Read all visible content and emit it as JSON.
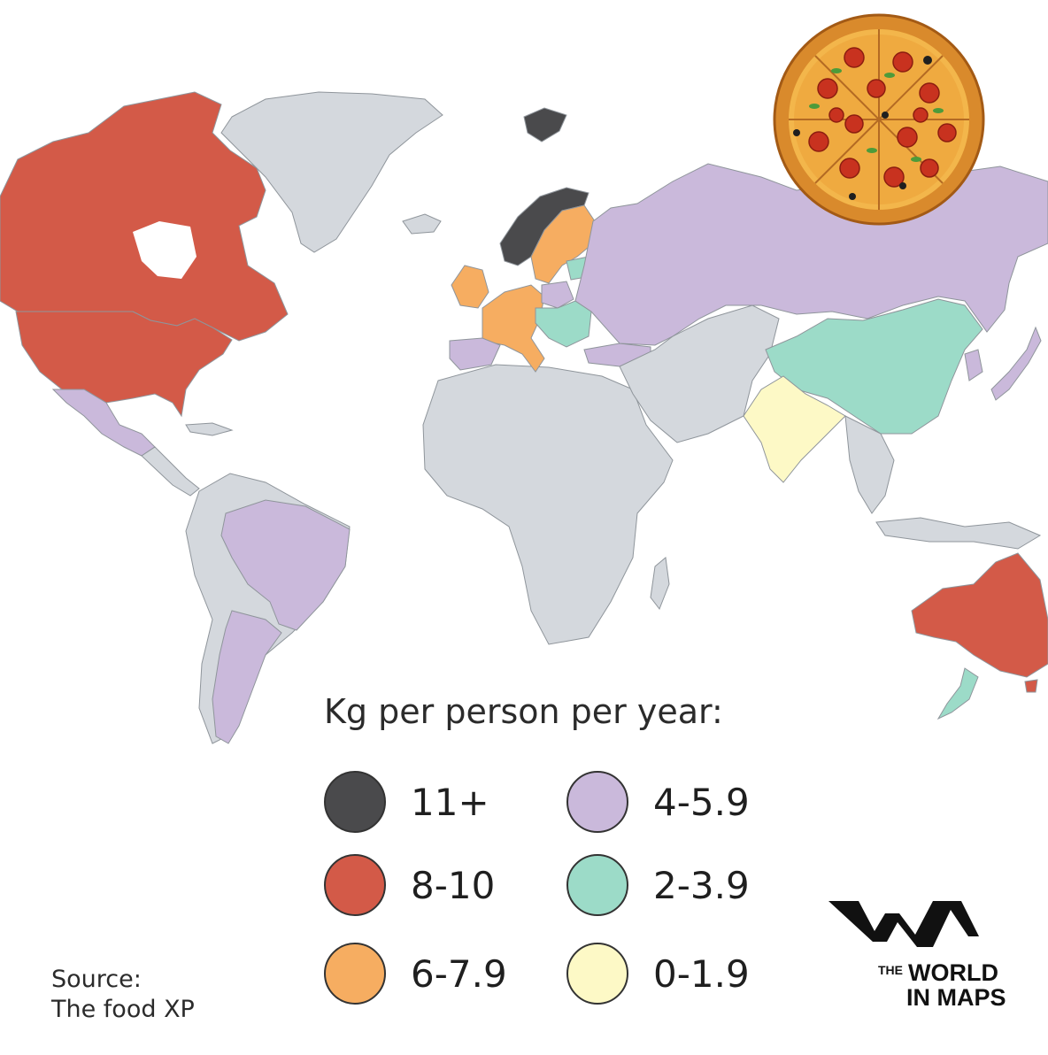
{
  "map": {
    "legend_title": "Kg per person per year:",
    "legend": [
      {
        "label": "11+",
        "color": "#4a4a4c",
        "countries": [
          "Norway"
        ]
      },
      {
        "label": "4-5.9",
        "color": "#cab9db",
        "countries": [
          "Russia",
          "Mexico",
          "Brazil",
          "Argentina",
          "Spain",
          "Poland",
          "Turkey",
          "Japan",
          "South Korea"
        ]
      },
      {
        "label": "8-10",
        "color": "#d35a48",
        "countries": [
          "Canada",
          "United States",
          "Australia"
        ]
      },
      {
        "label": "2-3.9",
        "color": "#9cdbc8",
        "countries": [
          "China",
          "New Zealand",
          "Balkans"
        ]
      },
      {
        "label": "6-7.9",
        "color": "#f6ad61",
        "countries": [
          "Sweden",
          "Finland",
          "United Kingdom",
          "Ireland",
          "France",
          "Germany",
          "Italy"
        ]
      },
      {
        "label": "0-1.9",
        "color": "#fdf9c6",
        "countries": [
          "India"
        ]
      }
    ],
    "no_data_color": "#d4d8dd",
    "pizza_icon": "pizza-illustration"
  },
  "source": {
    "line1": "Source:",
    "line2": "The food XP"
  },
  "brand": {
    "the": "THE",
    "line1": "WORLD",
    "line2": "IN MAPS"
  }
}
